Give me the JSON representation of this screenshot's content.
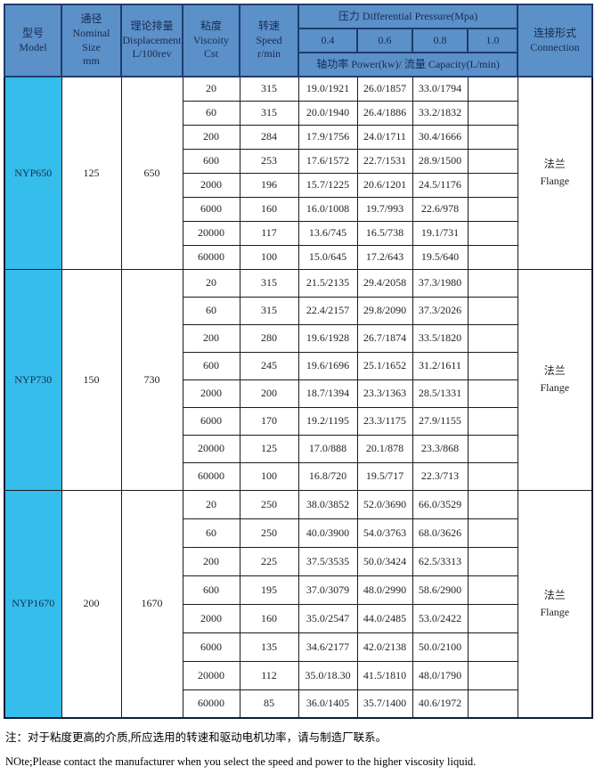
{
  "table": {
    "header": {
      "model_zh": "型号",
      "model_en": "Model",
      "nominal_zh": "通径",
      "nominal_en": "Nominal Size",
      "nominal_unit": "mm",
      "displacement_zh": "理论排量",
      "displacement_en": "Displacement",
      "displacement_unit": "L/100rev",
      "viscosity_zh": "粘度",
      "viscosity_en": "Viscoity",
      "viscosity_unit": "Cst",
      "speed_zh": "转速",
      "speed_en": "Speed",
      "speed_unit": "r/min",
      "pressure_title": "压力 Differential Pressure(Mpa)",
      "pressure_values": [
        "0.4",
        "0.6",
        "0.8",
        "1.0"
      ],
      "power_capacity": "轴功率 Power(kw)/ 流量 Capacity(L/min)",
      "connection_zh": "连接形式",
      "connection_en": "Connection"
    },
    "groups": [
      {
        "model": "NYP650",
        "nominal_size": "125",
        "displacement": "650",
        "connection_zh": "法兰",
        "connection_en": "Flange",
        "rows": [
          {
            "viscosity": "20",
            "speed": "315",
            "p04": "19.0/1921",
            "p06": "26.0/1857",
            "p08": "33.0/1794",
            "p10": ""
          },
          {
            "viscosity": "60",
            "speed": "315",
            "p04": "20.0/1940",
            "p06": "26.4/1886",
            "p08": "33.2/1832",
            "p10": ""
          },
          {
            "viscosity": "200",
            "speed": "284",
            "p04": "17.9/1756",
            "p06": "24.0/1711",
            "p08": "30.4/1666",
            "p10": ""
          },
          {
            "viscosity": "600",
            "speed": "253",
            "p04": "17.6/1572",
            "p06": "22.7/1531",
            "p08": "28.9/1500",
            "p10": ""
          },
          {
            "viscosity": "2000",
            "speed": "196",
            "p04": "15.7/1225",
            "p06": "20.6/1201",
            "p08": "24.5/1176",
            "p10": ""
          },
          {
            "viscosity": "6000",
            "speed": "160",
            "p04": "16.0/1008",
            "p06": "19.7/993",
            "p08": "22.6/978",
            "p10": ""
          },
          {
            "viscosity": "20000",
            "speed": "117",
            "p04": "13.6/745",
            "p06": "16.5/738",
            "p08": "19.1/731",
            "p10": ""
          },
          {
            "viscosity": "60000",
            "speed": "100",
            "p04": "15.0/645",
            "p06": "17.2/643",
            "p08": "19.5/640",
            "p10": ""
          }
        ]
      },
      {
        "model": "NYP730",
        "nominal_size": "150",
        "displacement": "730",
        "connection_zh": "法兰",
        "connection_en": "Flange",
        "rows": [
          {
            "viscosity": "20",
            "speed": "315",
            "p04": "21.5/2135",
            "p06": "29.4/2058",
            "p08": "37.3/1980",
            "p10": ""
          },
          {
            "viscosity": "60",
            "speed": "315",
            "p04": "22.4/2157",
            "p06": "29.8/2090",
            "p08": "37.3/2026",
            "p10": ""
          },
          {
            "viscosity": "200",
            "speed": "280",
            "p04": "19.6/1928",
            "p06": "26.7/1874",
            "p08": "33.5/1820",
            "p10": ""
          },
          {
            "viscosity": "600",
            "speed": "245",
            "p04": "19.6/1696",
            "p06": "25.1/1652",
            "p08": "31.2/1611",
            "p10": ""
          },
          {
            "viscosity": "2000",
            "speed": "200",
            "p04": "18.7/1394",
            "p06": "23.3/1363",
            "p08": "28.5/1331",
            "p10": ""
          },
          {
            "viscosity": "6000",
            "speed": "170",
            "p04": "19.2/1195",
            "p06": "23.3/1175",
            "p08": "27.9/1155",
            "p10": ""
          },
          {
            "viscosity": "20000",
            "speed": "125",
            "p04": "17.0/888",
            "p06": "20.1/878",
            "p08": "23.3/868",
            "p10": ""
          },
          {
            "viscosity": "60000",
            "speed": "100",
            "p04": "16.8/720",
            "p06": "19.5/717",
            "p08": "22.3/713",
            "p10": ""
          }
        ]
      },
      {
        "model": "NYP1670",
        "nominal_size": "200",
        "displacement": "1670",
        "connection_zh": "法兰",
        "connection_en": "Flange",
        "rows": [
          {
            "viscosity": "20",
            "speed": "250",
            "p04": "38.0/3852",
            "p06": "52.0/3690",
            "p08": "66.0/3529",
            "p10": ""
          },
          {
            "viscosity": "60",
            "speed": "250",
            "p04": "40.0/3900",
            "p06": "54.0/3763",
            "p08": "68.0/3626",
            "p10": ""
          },
          {
            "viscosity": "200",
            "speed": "225",
            "p04": "37.5/3535",
            "p06": "50.0/3424",
            "p08": "62.5/3313",
            "p10": ""
          },
          {
            "viscosity": "600",
            "speed": "195",
            "p04": "37.0/3079",
            "p06": "48.0/2990",
            "p08": "58.6/2900",
            "p10": ""
          },
          {
            "viscosity": "2000",
            "speed": "160",
            "p04": "35.0/2547",
            "p06": "44.0/2485",
            "p08": "53.0/2422",
            "p10": ""
          },
          {
            "viscosity": "6000",
            "speed": "135",
            "p04": "34.6/2177",
            "p06": "42.0/2138",
            "p08": "50.0/2100",
            "p10": ""
          },
          {
            "viscosity": "20000",
            "speed": "112",
            "p04": "35.0/18.30",
            "p06": "41.5/1810",
            "p08": "48.0/1790",
            "p10": ""
          },
          {
            "viscosity": "60000",
            "speed": "85",
            "p04": "36.0/1405",
            "p06": "35.7/1400",
            "p08": "40.6/1972",
            "p10": ""
          }
        ]
      }
    ]
  },
  "notes": {
    "zh": "注：对于粘度更高的介质,所应选用的转速和驱动电机功率，请与制造厂联系。",
    "en": "NOte;Please contact the manufacturer when you select the speed and power to the higher viscosity liquid."
  },
  "colors": {
    "header_bg": "#5b90c8",
    "model_bg": "#35bdeb",
    "header_border": "#1e3c6e",
    "cell_border": "#1b1b1b"
  }
}
